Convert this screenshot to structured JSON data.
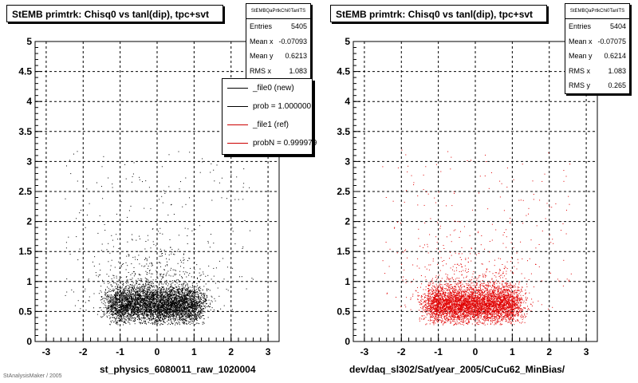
{
  "panels": [
    {
      "title": "StEMB primtrk: Chisq0 vs tanl(dip), tpc+svt",
      "stats": {
        "name": "StEMBQaPrtkChi0TanlTS",
        "rows": [
          {
            "label": "Entries",
            "value": "5405"
          },
          {
            "label": "Mean x",
            "value": "-0.07093"
          },
          {
            "label": "Mean y",
            "value": "0.6213"
          },
          {
            "label": "RMS x",
            "value": "1.083"
          }
        ]
      },
      "legend": [
        {
          "label": "_file0 (new)",
          "color": "#000000"
        },
        {
          "label": "prob = 1.000000",
          "color": "#000000"
        },
        {
          "label": "_file1 (ref)",
          "color": "#cc0000"
        },
        {
          "label": "probN = 0.999979",
          "color": "#cc0000"
        }
      ],
      "xlabel": "st_physics_6080011_raw_1020004",
      "footer_text": "StAnalysisMaker / 2005"
    },
    {
      "title": "StEMB primtrk: Chisq0 vs tanl(dip), tpc+svt",
      "stats": {
        "name": "StEMBQaPrtkChi0TanlTS",
        "rows": [
          {
            "label": "Entries",
            "value": "5404"
          },
          {
            "label": "Mean x",
            "value": "-0.07075"
          },
          {
            "label": "Mean y",
            "value": "0.6214"
          },
          {
            "label": "RMS x",
            "value": "1.083"
          },
          {
            "label": "RMS y",
            "value": "0.265"
          }
        ]
      },
      "xlabel": "dev/daq_sl302/Sat/year_2005/CuCu62_MinBias/"
    }
  ],
  "chart_data": [
    {
      "type": "scatter",
      "title": "StEMB primtrk: Chisq0 vs tanl(dip), tpc+svt",
      "xlabel": "st_physics_6080011_raw_1020004",
      "ylabel": "",
      "xlim": [
        -3.3,
        3.3
      ],
      "ylim": [
        0,
        5
      ],
      "x_ticks": [
        "-3",
        "-2",
        "-1",
        "0",
        "1",
        "2",
        "3"
      ],
      "y_ticks": [
        "0",
        "0.5",
        "1",
        "1.5",
        "2",
        "2.5",
        "3",
        "3.5",
        "4",
        "4.5",
        "5"
      ],
      "grid": true,
      "marker_color": "#000000",
      "entries": 5405,
      "mean_x": -0.07093,
      "mean_y": 0.6213,
      "rms_x": 1.083,
      "legend_position": "top-right",
      "series": [
        {
          "name": "_file0 (new)",
          "color": "#000000"
        },
        {
          "name": "_file1 (ref)",
          "color": "#cc0000"
        }
      ]
    },
    {
      "type": "scatter",
      "title": "StEMB primtrk: Chisq0 vs tanl(dip), tpc+svt",
      "xlabel": "dev/daq_sl302/Sat/year_2005/CuCu62_MinBias/",
      "ylabel": "",
      "xlim": [
        -3.3,
        3.3
      ],
      "ylim": [
        0,
        5
      ],
      "x_ticks": [
        "-3",
        "-2",
        "-1",
        "0",
        "1",
        "2",
        "3"
      ],
      "y_ticks": [
        "0",
        "0.5",
        "1",
        "1.5",
        "2",
        "2.5",
        "3",
        "3.5",
        "4",
        "4.5",
        "5"
      ],
      "grid": true,
      "marker_color": "#e00000",
      "entries": 5404,
      "mean_x": -0.07075,
      "mean_y": 0.6214,
      "rms_x": 1.083,
      "rms_y": 0.265
    }
  ]
}
